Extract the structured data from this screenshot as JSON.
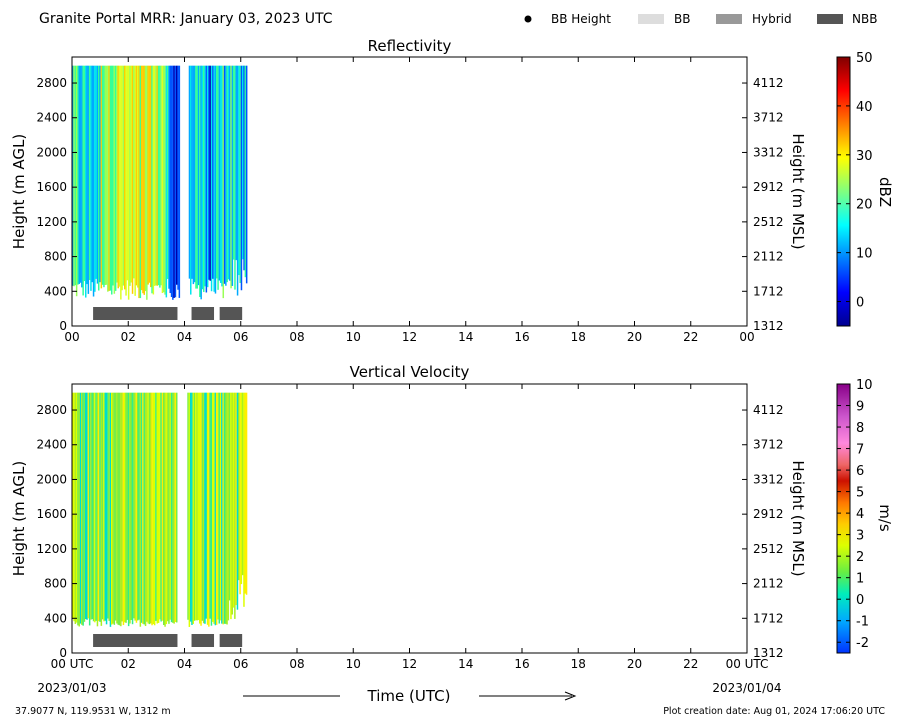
{
  "header": {
    "title": "Granite Portal MRR:  January 03, 2023 UTC",
    "legend": [
      {
        "label": "BB Height",
        "swatch": "dot",
        "color": "#000000"
      },
      {
        "label": "BB",
        "swatch": "bar",
        "color": "#dddddd"
      },
      {
        "label": "Hybrid",
        "swatch": "bar",
        "color": "#999999"
      },
      {
        "label": "NBB",
        "swatch": "bar",
        "color": "#555555"
      }
    ]
  },
  "footer": {
    "location": "37.9077 N, 119.9531 W, 1312 m",
    "creation": "Plot creation date: Aug 01, 2024 17:06:20 UTC",
    "xlabel": "Time (UTC)",
    "start_date": "2023/01/03",
    "end_date": "2023/01/04"
  },
  "chart_data": [
    {
      "type": "heatmap",
      "title": "Reflectivity",
      "ylabel": "Height (m AGL)",
      "ylabel_right": "Height (m MSL)",
      "x_ticks": [
        "00",
        "02",
        "04",
        "06",
        "08",
        "10",
        "12",
        "14",
        "16",
        "18",
        "20",
        "22",
        "00"
      ],
      "xlim": [
        0,
        24
      ],
      "y_ticks": [
        0,
        400,
        800,
        1200,
        1600,
        2000,
        2400,
        2800
      ],
      "ylim": [
        0,
        3100
      ],
      "y_ticks_right": [
        1312,
        1712,
        2112,
        2512,
        2912,
        3312,
        3712,
        4112
      ],
      "colorbar": {
        "label": "dBZ",
        "ticks": [
          0,
          10,
          20,
          30,
          40,
          50
        ],
        "range": [
          -5,
          50
        ]
      },
      "data_coverage_hours": [
        [
          0,
          3.8
        ],
        [
          4.15,
          6.2
        ]
      ],
      "precip_type_bars": [
        {
          "type": "NBB",
          "start": 0.75,
          "end": 3.75
        },
        {
          "type": "NBB",
          "start": 4.25,
          "end": 5.05
        },
        {
          "type": "NBB",
          "start": 5.25,
          "end": 6.05
        }
      ]
    },
    {
      "type": "heatmap",
      "title": "Vertical Velocity",
      "ylabel": "Height (m AGL)",
      "ylabel_right": "Height (m MSL)",
      "x_ticks": [
        "00 UTC",
        "02",
        "04",
        "06",
        "08",
        "10",
        "12",
        "14",
        "16",
        "18",
        "20",
        "22",
        "00 UTC"
      ],
      "xlim": [
        0,
        24
      ],
      "y_ticks": [
        0,
        400,
        800,
        1200,
        1600,
        2000,
        2400,
        2800
      ],
      "ylim": [
        0,
        3100
      ],
      "y_ticks_right": [
        1312,
        1712,
        2112,
        2512,
        2912,
        3312,
        3712,
        4112
      ],
      "colorbar": {
        "label": "m/s",
        "ticks": [
          -2,
          -1,
          0,
          1,
          2,
          3,
          4,
          5,
          6,
          7,
          8,
          9,
          10
        ],
        "range": [
          -2.5,
          10
        ]
      },
      "data_coverage_hours": [
        [
          0,
          3.7
        ],
        [
          4.1,
          6.2
        ]
      ],
      "precip_type_bars": [
        {
          "type": "NBB",
          "start": 0.75,
          "end": 3.75
        },
        {
          "type": "NBB",
          "start": 4.25,
          "end": 5.05
        },
        {
          "type": "NBB",
          "start": 5.25,
          "end": 6.05
        }
      ]
    }
  ]
}
